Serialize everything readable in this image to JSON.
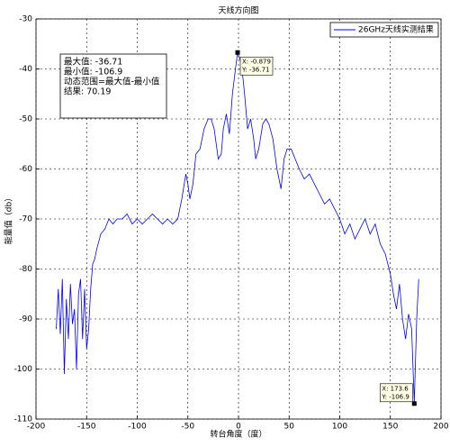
{
  "chart_data": {
    "type": "line",
    "title": "天线方向图",
    "xlabel": "转台角度（度）",
    "ylabel": "能量值（db）",
    "x": [
      -180,
      -178,
      -176,
      -174,
      -172,
      -170,
      -168,
      -166,
      -164,
      -162,
      -160,
      -158,
      -156,
      -154,
      -152,
      -150,
      -148,
      -146,
      -144,
      -142,
      -140,
      -136,
      -132,
      -128,
      -124,
      -120,
      -115,
      -110,
      -105,
      -100,
      -95,
      -90,
      -85,
      -80,
      -75,
      -70,
      -65,
      -60,
      -56,
      -52,
      -50,
      -48,
      -45,
      -42,
      -38,
      -34,
      -30,
      -27,
      -24,
      -20,
      -17,
      -15,
      -12,
      -9,
      -6,
      -3,
      -0.879,
      3,
      6,
      9,
      12,
      15,
      17,
      20,
      24,
      27,
      30,
      34,
      38,
      42,
      45,
      48,
      52,
      56,
      60,
      65,
      70,
      75,
      80,
      85,
      90,
      95,
      100,
      105,
      110,
      115,
      120,
      125,
      130,
      135,
      140,
      145,
      150,
      153,
      156,
      159,
      162,
      165,
      168,
      171,
      173.6,
      176,
      178
    ],
    "series": [
      {
        "name": "26GHz天线实测结果",
        "color": "#0000ff",
        "values": [
          -92,
          -84,
          -93,
          -82,
          -101,
          -86,
          -94,
          -83,
          -91,
          -88,
          -100,
          -85,
          -82,
          -94,
          -84,
          -96,
          -92,
          -84,
          -79,
          -78,
          -76,
          -73,
          -72,
          -70,
          -71,
          -70,
          -70,
          -69,
          -71,
          -70,
          -71,
          -70,
          -69,
          -70,
          -71,
          -70,
          -71,
          -70,
          -66,
          -61,
          -63,
          -66,
          -63,
          -57,
          -56,
          -52,
          -50,
          -50,
          -52,
          -58,
          -57,
          -52,
          -49,
          -53,
          -45,
          -40,
          -36.71,
          -39,
          -45,
          -52,
          -50,
          -54,
          -58,
          -56,
          -51,
          -50,
          -51,
          -54,
          -60,
          -64,
          -58,
          -56,
          -56,
          -58,
          -60,
          -62,
          -61,
          -63,
          -65,
          -67,
          -66,
          -68,
          -70,
          -73,
          -71,
          -74,
          -72,
          -70,
          -73,
          -71,
          -75,
          -77,
          -81,
          -85,
          -88,
          -83,
          -90,
          -94,
          -89,
          -92,
          -106.9,
          -90,
          -82
        ]
      }
    ],
    "xlim": [
      -200,
      200
    ],
    "xticks": [
      -200,
      -150,
      -100,
      -50,
      0,
      50,
      100,
      150,
      200
    ],
    "ylim": [
      -110,
      -30
    ],
    "yticks": [
      -110,
      -100,
      -90,
      -80,
      -70,
      -60,
      -50,
      -40,
      -30
    ],
    "grid": true,
    "legend": "upper right",
    "annotation": [
      "最大值: -36.71",
      "最小值: -106.9",
      "动态范围=最大值-最小值",
      "结果: 70.19"
    ],
    "datatips": [
      {
        "x": -0.879,
        "y": -36.71,
        "lines": [
          "X: -0.879",
          "Y: -36.71"
        ]
      },
      {
        "x": 173.6,
        "y": -106.9,
        "lines": [
          "X: 173.6",
          "Y: -106.9"
        ]
      }
    ]
  }
}
